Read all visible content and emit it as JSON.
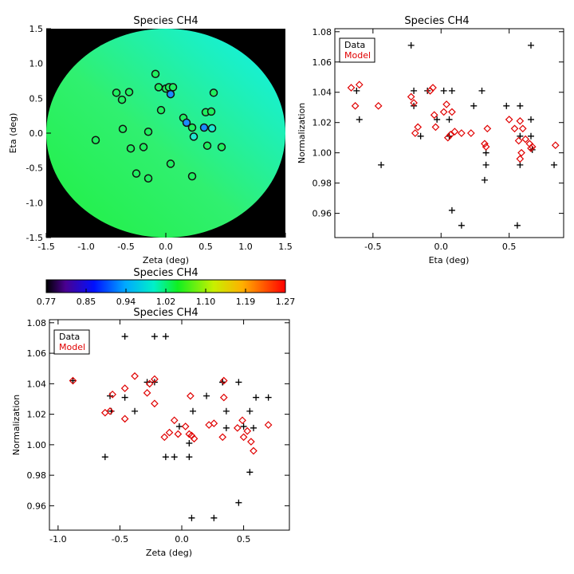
{
  "colors": {
    "data": "#000000",
    "model": "#e00000",
    "background": "#000000"
  },
  "chart_data": [
    {
      "type": "scatter",
      "title": "Species CH4",
      "xlabel": "Zeta (deg)",
      "ylabel": "Eta (deg)",
      "xlim": [
        -1.5,
        1.5
      ],
      "ylim": [
        -1.5,
        1.5
      ],
      "xticks": [
        "-1.5",
        "-1.0",
        "-0.5",
        "0.0",
        "0.5",
        "1.0",
        "1.5"
      ],
      "yticks": [
        "-1.5",
        "-1.0",
        "-0.5",
        "0.0",
        "0.5",
        "1.0",
        "1.5"
      ],
      "field": "circular map of radius 1.5 deg, normalization ~0.98-1.02 (green to cyan gradient), black outside",
      "points": [
        {
          "zeta": -0.13,
          "eta": 0.85,
          "norm": 1.01
        },
        {
          "zeta": -0.09,
          "eta": 0.66,
          "norm": 1.01
        },
        {
          "zeta": 0.0,
          "eta": 0.64,
          "norm": 1.01
        },
        {
          "zeta": 0.04,
          "eta": 0.66,
          "norm": 1.02
        },
        {
          "zeta": 0.09,
          "eta": 0.66,
          "norm": 1.01
        },
        {
          "zeta": -0.62,
          "eta": 0.58,
          "norm": 1.04
        },
        {
          "zeta": -0.46,
          "eta": 0.59,
          "norm": 1.03
        },
        {
          "zeta": 0.06,
          "eta": 0.56,
          "norm": 0.94
        },
        {
          "zeta": 0.6,
          "eta": 0.58,
          "norm": 1.01
        },
        {
          "zeta": -0.55,
          "eta": 0.48,
          "norm": 1.04
        },
        {
          "zeta": -0.06,
          "eta": 0.33,
          "norm": 1.01
        },
        {
          "zeta": 0.5,
          "eta": 0.3,
          "norm": 1.03
        },
        {
          "zeta": 0.57,
          "eta": 0.31,
          "norm": 1.01
        },
        {
          "zeta": 0.22,
          "eta": 0.22,
          "norm": 1.01
        },
        {
          "zeta": 0.26,
          "eta": 0.15,
          "norm": 0.93
        },
        {
          "zeta": -0.54,
          "eta": 0.06,
          "norm": 1.02
        },
        {
          "zeta": 0.33,
          "eta": 0.08,
          "norm": 1.01
        },
        {
          "zeta": 0.48,
          "eta": 0.08,
          "norm": 0.94
        },
        {
          "zeta": 0.58,
          "eta": 0.07,
          "norm": 1.0
        },
        {
          "zeta": -0.22,
          "eta": 0.02,
          "norm": 1.01
        },
        {
          "zeta": 0.35,
          "eta": -0.05,
          "norm": 1.0
        },
        {
          "zeta": -0.88,
          "eta": -0.1,
          "norm": 1.04
        },
        {
          "zeta": 0.52,
          "eta": -0.18,
          "norm": 1.01
        },
        {
          "zeta": 0.7,
          "eta": -0.2,
          "norm": 1.01
        },
        {
          "zeta": -0.44,
          "eta": -0.22,
          "norm": 1.03
        },
        {
          "zeta": -0.28,
          "eta": -0.2,
          "norm": 1.03
        },
        {
          "zeta": 0.06,
          "eta": -0.44,
          "norm": 1.01
        },
        {
          "zeta": -0.37,
          "eta": -0.58,
          "norm": 1.02
        },
        {
          "zeta": -0.22,
          "eta": -0.65,
          "norm": 1.02
        },
        {
          "zeta": 0.33,
          "eta": -0.62,
          "norm": 1.01
        }
      ]
    },
    {
      "type": "scatter",
      "title": "Species CH4",
      "xlabel": "Eta (deg)",
      "ylabel": "Normalization",
      "xlim": [
        -0.78,
        0.9
      ],
      "ylim": [
        0.944,
        1.082
      ],
      "xticks": [
        -0.5,
        0.0,
        0.5
      ],
      "xtick_labels": [
        "-0.5",
        "0.0",
        "0.5"
      ],
      "yticks": [
        0.96,
        0.98,
        1.0,
        1.02,
        1.04,
        1.06,
        1.08
      ],
      "ytick_labels": [
        "0.96",
        "0.98",
        "1.00",
        "1.02",
        "1.04",
        "1.06",
        "1.08"
      ],
      "legend": {
        "position": "top-left",
        "entries": [
          {
            "label": "Data",
            "color": "#000000"
          },
          {
            "label": "Model",
            "color": "#e00000"
          }
        ]
      },
      "series": [
        {
          "name": "Data",
          "marker": "plus",
          "color": "#000000",
          "points": [
            [
              -0.65,
              1.071
            ],
            [
              -0.22,
              1.071
            ],
            [
              0.66,
              1.071
            ],
            [
              -0.62,
              1.041
            ],
            [
              -0.2,
              1.041
            ],
            [
              -0.1,
              1.041
            ],
            [
              0.02,
              1.041
            ],
            [
              0.08,
              1.041
            ],
            [
              0.3,
              1.041
            ],
            [
              -0.6,
              1.022
            ],
            [
              -0.03,
              1.022
            ],
            [
              0.06,
              1.022
            ],
            [
              0.66,
              1.022
            ],
            [
              -0.2,
              1.031
            ],
            [
              0.24,
              1.031
            ],
            [
              0.48,
              1.031
            ],
            [
              0.58,
              1.031
            ],
            [
              -0.15,
              1.011
            ],
            [
              0.06,
              1.011
            ],
            [
              0.58,
              1.011
            ],
            [
              0.66,
              1.011
            ],
            [
              0.33,
              1.0
            ],
            [
              0.67,
              1.002
            ],
            [
              -0.44,
              0.992
            ],
            [
              0.33,
              0.992
            ],
            [
              0.58,
              0.992
            ],
            [
              0.83,
              0.992
            ],
            [
              0.32,
              0.982
            ],
            [
              0.08,
              0.962
            ],
            [
              0.15,
              0.952
            ],
            [
              0.56,
              0.952
            ]
          ]
        },
        {
          "name": "Model",
          "marker": "diamond",
          "color": "#e00000",
          "points": [
            [
              -0.66,
              1.043
            ],
            [
              -0.6,
              1.045
            ],
            [
              -0.63,
              1.031
            ],
            [
              -0.46,
              1.031
            ],
            [
              -0.22,
              1.037
            ],
            [
              -0.2,
              1.033
            ],
            [
              -0.06,
              1.043
            ],
            [
              -0.08,
              1.041
            ],
            [
              -0.05,
              1.025
            ],
            [
              -0.04,
              1.017
            ],
            [
              0.02,
              1.027
            ],
            [
              0.04,
              1.032
            ],
            [
              0.08,
              1.027
            ],
            [
              0.05,
              1.01
            ],
            [
              0.07,
              1.012
            ],
            [
              0.1,
              1.014
            ],
            [
              -0.17,
              1.017
            ],
            [
              -0.19,
              1.013
            ],
            [
              0.15,
              1.013
            ],
            [
              0.22,
              1.013
            ],
            [
              0.32,
              1.006
            ],
            [
              0.33,
              1.004
            ],
            [
              0.34,
              1.016
            ],
            [
              0.5,
              1.022
            ],
            [
              0.54,
              1.016
            ],
            [
              0.57,
              1.008
            ],
            [
              0.58,
              1.021
            ],
            [
              0.6,
              1.016
            ],
            [
              0.59,
              1.0
            ],
            [
              0.58,
              0.996
            ],
            [
              0.62,
              1.009
            ],
            [
              0.65,
              1.006
            ],
            [
              0.67,
              1.004
            ],
            [
              0.66,
              1.003
            ],
            [
              0.84,
              1.005
            ]
          ]
        }
      ]
    },
    {
      "type": "colorbar",
      "title": "Species CH4",
      "range": [
        0.77,
        1.27
      ],
      "tick_labels": [
        "0.77",
        "0.85",
        "0.94",
        "1.02",
        "1.10",
        "1.19",
        "1.27"
      ]
    },
    {
      "type": "scatter",
      "title": "Species CH4",
      "xlabel": "Zeta (deg)",
      "ylabel": "Normalization",
      "xlim": [
        -1.07,
        0.87
      ],
      "ylim": [
        0.944,
        1.082
      ],
      "xticks": [
        -1.0,
        -0.5,
        0.0,
        0.5
      ],
      "xtick_labels": [
        "-1.0",
        "-0.5",
        "0.0",
        "0.5"
      ],
      "yticks": [
        0.96,
        0.98,
        1.0,
        1.02,
        1.04,
        1.06,
        1.08
      ],
      "ytick_labels": [
        "0.96",
        "0.98",
        "1.00",
        "1.02",
        "1.04",
        "1.06",
        "1.08"
      ],
      "legend": {
        "position": "top-left",
        "entries": [
          {
            "label": "Data",
            "color": "#000000"
          },
          {
            "label": "Model",
            "color": "#e00000"
          }
        ]
      },
      "series": [
        {
          "name": "Data",
          "marker": "plus",
          "color": "#000000",
          "points": [
            [
              -0.88,
              1.042
            ],
            [
              -0.62,
              0.992
            ],
            [
              -0.58,
              1.032
            ],
            [
              -0.57,
              1.022
            ],
            [
              -0.46,
              1.071
            ],
            [
              -0.46,
              1.031
            ],
            [
              -0.38,
              1.022
            ],
            [
              -0.28,
              1.041
            ],
            [
              -0.22,
              1.071
            ],
            [
              -0.22,
              1.041
            ],
            [
              -0.13,
              1.071
            ],
            [
              -0.13,
              0.992
            ],
            [
              -0.06,
              0.992
            ],
            [
              -0.02,
              1.012
            ],
            [
              0.06,
              1.001
            ],
            [
              0.06,
              0.992
            ],
            [
              0.08,
              0.952
            ],
            [
              0.09,
              1.022
            ],
            [
              0.2,
              1.032
            ],
            [
              0.26,
              0.952
            ],
            [
              0.33,
              1.041
            ],
            [
              0.33,
              1.041
            ],
            [
              0.36,
              1.022
            ],
            [
              0.36,
              1.011
            ],
            [
              0.46,
              1.041
            ],
            [
              0.46,
              0.962
            ],
            [
              0.5,
              1.012
            ],
            [
              0.55,
              1.022
            ],
            [
              0.55,
              0.982
            ],
            [
              0.58,
              1.011
            ],
            [
              0.6,
              1.031
            ],
            [
              0.7,
              1.031
            ]
          ]
        },
        {
          "name": "Model",
          "marker": "diamond",
          "color": "#e00000",
          "points": [
            [
              -0.88,
              1.042
            ],
            [
              -0.62,
              1.021
            ],
            [
              -0.58,
              1.022
            ],
            [
              -0.56,
              1.033
            ],
            [
              -0.46,
              1.037
            ],
            [
              -0.46,
              1.017
            ],
            [
              -0.38,
              1.045
            ],
            [
              -0.28,
              1.034
            ],
            [
              -0.26,
              1.04
            ],
            [
              -0.22,
              1.043
            ],
            [
              -0.22,
              1.027
            ],
            [
              -0.14,
              1.005
            ],
            [
              -0.1,
              1.008
            ],
            [
              -0.06,
              1.016
            ],
            [
              -0.03,
              1.007
            ],
            [
              0.03,
              1.012
            ],
            [
              0.06,
              1.007
            ],
            [
              0.08,
              1.006
            ],
            [
              0.07,
              1.032
            ],
            [
              0.1,
              1.004
            ],
            [
              0.22,
              1.013
            ],
            [
              0.26,
              1.014
            ],
            [
              0.33,
              1.005
            ],
            [
              0.34,
              1.031
            ],
            [
              0.34,
              1.042
            ],
            [
              0.45,
              1.011
            ],
            [
              0.49,
              1.016
            ],
            [
              0.5,
              1.005
            ],
            [
              0.53,
              1.009
            ],
            [
              0.56,
              1.002
            ],
            [
              0.58,
              0.996
            ],
            [
              0.7,
              1.013
            ]
          ]
        }
      ]
    }
  ]
}
